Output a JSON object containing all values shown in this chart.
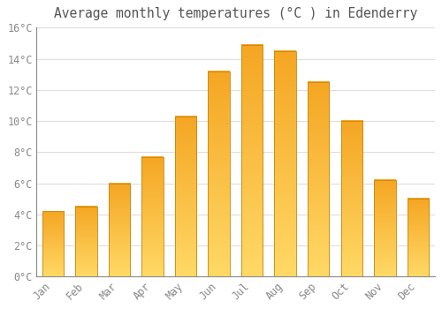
{
  "title": "Average monthly temperatures (°C ) in Edenderry",
  "months": [
    "Jan",
    "Feb",
    "Mar",
    "Apr",
    "May",
    "Jun",
    "Jul",
    "Aug",
    "Sep",
    "Oct",
    "Nov",
    "Dec"
  ],
  "values": [
    4.2,
    4.5,
    6.0,
    7.7,
    10.3,
    13.2,
    14.9,
    14.5,
    12.5,
    10.0,
    6.2,
    5.0
  ],
  "bar_color_top": "#F5A623",
  "bar_color_bottom": "#FFD966",
  "bar_edge_color": "#C8850A",
  "ylim": [
    0,
    16
  ],
  "yticks": [
    0,
    2,
    4,
    6,
    8,
    10,
    12,
    14,
    16
  ],
  "ytick_labels": [
    "0°C",
    "2°C",
    "4°C",
    "6°C",
    "8°C",
    "10°C",
    "12°C",
    "14°C",
    "16°C"
  ],
  "background_color": "#FFFFFF",
  "grid_color": "#DDDDDD",
  "title_fontsize": 10.5,
  "tick_fontsize": 8.5,
  "tick_color": "#888888",
  "title_color": "#555555"
}
